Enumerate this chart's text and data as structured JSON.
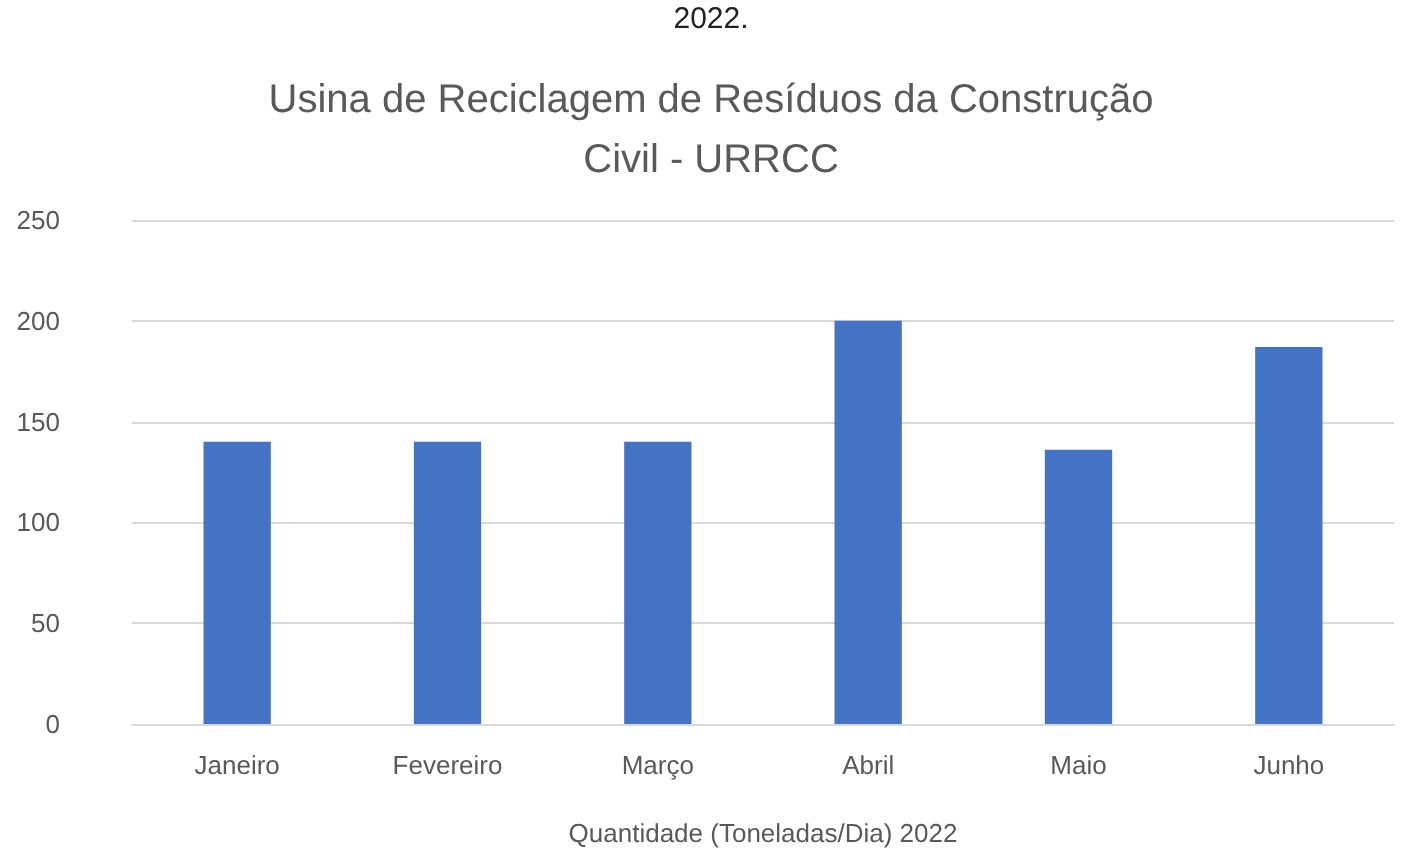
{
  "chart_data": {
    "type": "bar",
    "title": "Usina de Reciclagem de Resíduos da Construção\nCivil - URRCC",
    "annotations": [
      "2022."
    ],
    "xlabel": "Quantidade (Toneladas/Dia) 2022",
    "categories": [
      "Janeiro",
      "Fevereiro",
      "Março",
      "Abril",
      "Maio",
      "Junho"
    ],
    "values": [
      140,
      140,
      140,
      200,
      136,
      187
    ],
    "color": "#4472c4",
    "ylim": [
      0,
      250
    ],
    "yticks": [
      0,
      50,
      100,
      150,
      200,
      250
    ],
    "grid": "y"
  }
}
